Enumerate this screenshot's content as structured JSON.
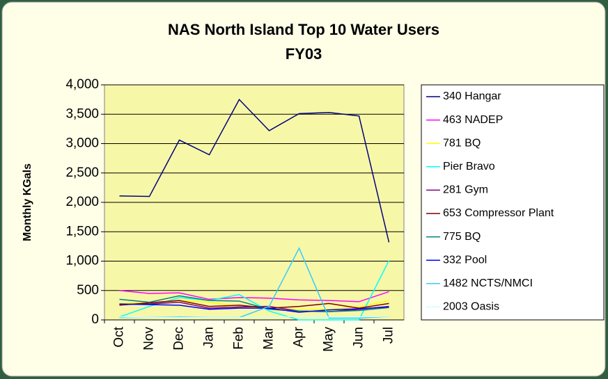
{
  "chart_data": {
    "type": "line",
    "title": "NAS North Island Top 10 Water Users",
    "subtitle": "FY03",
    "y_label": "Monthly KGals",
    "categories": [
      "Oct",
      "Nov",
      "Dec",
      "Jan",
      "Feb",
      "Mar",
      "Apr",
      "May",
      "Jun",
      "Jul"
    ],
    "series": [
      {
        "name": "340 Hangar",
        "color": "#000080",
        "values": [
          2110,
          2100,
          3060,
          2810,
          3750,
          3220,
          3510,
          3530,
          3470,
          1320
        ]
      },
      {
        "name": "463 NADEP",
        "color": "#ff00ff",
        "values": [
          500,
          450,
          460,
          350,
          380,
          370,
          340,
          330,
          310,
          480
        ]
      },
      {
        "name": "781 BQ",
        "color": "#ffff00",
        "values": [
          280,
          290,
          330,
          300,
          230,
          200,
          170,
          180,
          220,
          330
        ]
      },
      {
        "name": "Pier Bravo",
        "color": "#00ffff",
        "values": [
          50,
          230,
          380,
          330,
          430,
          150,
          0,
          0,
          0,
          1010
        ]
      },
      {
        "name": "281 Gym",
        "color": "#800080",
        "values": [
          260,
          270,
          300,
          200,
          220,
          230,
          150,
          140,
          180,
          230
        ]
      },
      {
        "name": "653 Compressor Plant",
        "color": "#800000",
        "values": [
          250,
          290,
          330,
          230,
          250,
          200,
          230,
          280,
          200,
          280
        ]
      },
      {
        "name": "775 BQ",
        "color": "#008080",
        "values": [
          350,
          300,
          410,
          330,
          320,
          180,
          150,
          140,
          160,
          210
        ]
      },
      {
        "name": "332 Pool",
        "color": "#0000ff",
        "values": [
          270,
          260,
          250,
          180,
          200,
          200,
          130,
          170,
          190,
          220
        ]
      },
      {
        "name": "1482 NCTS/NMCI",
        "color": "#33ccff",
        "values": [
          40,
          40,
          50,
          40,
          40,
          230,
          1220,
          30,
          30,
          60
        ]
      },
      {
        "name": "2003 Oasis",
        "color": "#ccffff",
        "values": [
          50,
          40,
          40,
          40,
          40,
          40,
          60,
          50,
          50,
          60
        ]
      }
    ],
    "ylim": [
      0,
      4000
    ],
    "yticks": [
      0,
      500,
      {
        "value": 1000,
        "label": "1,000"
      },
      {
        "value": 1500,
        "label": "1,500"
      },
      {
        "value": 2000,
        "label": "2,000"
      },
      {
        "value": 2500,
        "label": "2,500"
      },
      {
        "value": 3000,
        "label": "3,000"
      },
      {
        "value": 3500,
        "label": "3,500"
      },
      {
        "value": 4000,
        "label": "4,000"
      }
    ],
    "grid": true
  }
}
